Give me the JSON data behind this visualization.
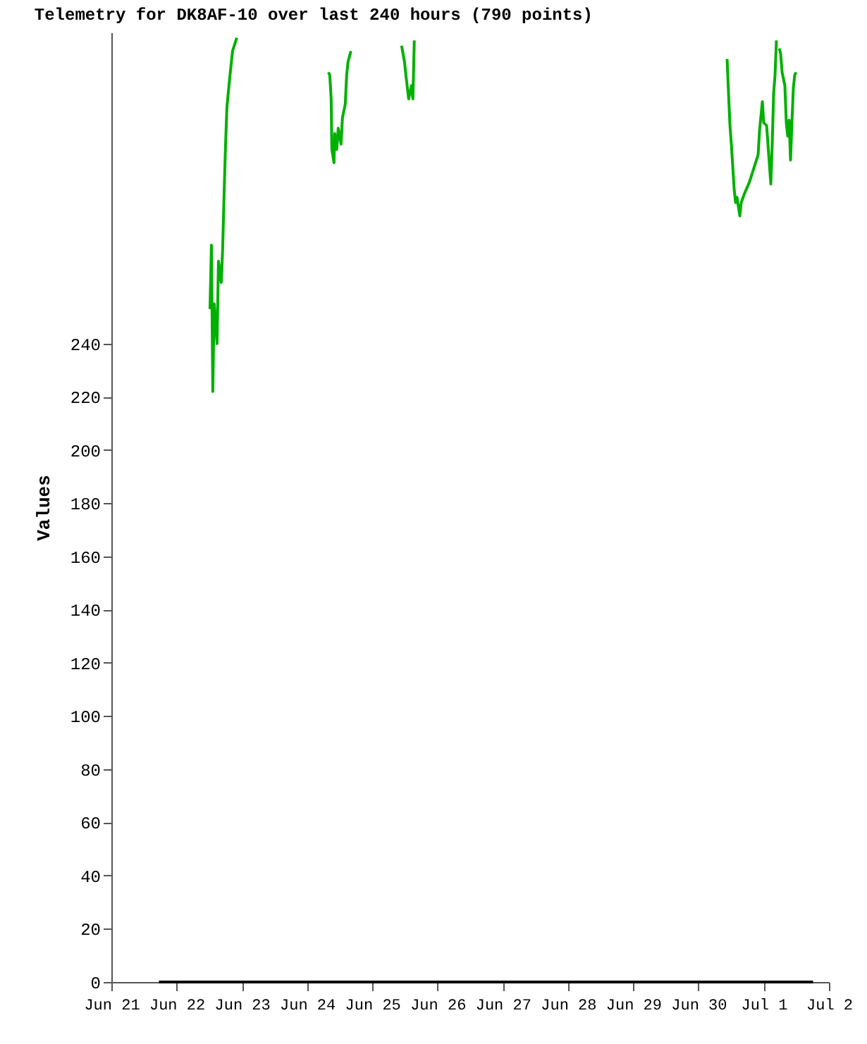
{
  "chart_data": {
    "type": "line",
    "title": "Telemetry for DK8AF-10 over last 240 hours (790 points)",
    "ylabel": "Values",
    "grid": false,
    "marker": "none",
    "line_style": "solid",
    "xlim": [
      "--06-21",
      "--07-02"
    ],
    "ylim": [
      0,
      357
    ],
    "xticks": [
      {
        "value": "--06-21",
        "label": "Jun 21"
      },
      {
        "value": "--06-22",
        "label": "Jun 22"
      },
      {
        "value": "--06-23",
        "label": "Jun 23"
      },
      {
        "value": "--06-24",
        "label": "Jun 24"
      },
      {
        "value": "--06-25",
        "label": "Jun 25"
      },
      {
        "value": "--06-26",
        "label": "Jun 26"
      },
      {
        "value": "--06-27",
        "label": "Jun 27"
      },
      {
        "value": "--06-28",
        "label": "Jun 28"
      },
      {
        "value": "--06-29",
        "label": "Jun 29"
      },
      {
        "value": "--06-30",
        "label": "Jun 30"
      },
      {
        "value": "--07-01",
        "label": "Jul 1"
      },
      {
        "value": "--07-02",
        "label": "Jul 2"
      }
    ],
    "yticks": [
      0,
      20,
      40,
      60,
      80,
      100,
      120,
      140,
      160,
      180,
      200,
      220,
      240
    ],
    "series": [
      {
        "color": "#000000",
        "x": [
          "--06-21T17:30",
          "--06-26T12:00",
          "--07-01T18:10"
        ],
        "values": [
          0,
          0,
          0
        ]
      },
      {
        "color": "#00b000",
        "x": [
          "--06-22T12:17",
          "--06-22T12:49",
          "--06-22T13:19",
          "--06-22T13:50",
          "--06-22T14:53",
          "--06-22T15:24",
          "--06-22T16:26",
          "--06-22T16:57",
          "--06-22T17:28",
          "--06-22T17:59",
          "--06-22T18:31",
          "--06-22T19:33",
          "--06-22T20:35",
          "--06-22T22:08",
          "--06-22T23:41",
          "--06-23T12:00",
          "--06-24T07:19",
          "--06-24T07:50",
          "--06-24T08:21",
          "--06-24T08:52",
          "--06-24T09:07",
          "--06-24T09:55",
          "--06-24T10:10",
          "--06-24T10:56",
          "--06-24T11:28",
          "--06-24T12:30",
          "--06-24T13:01",
          "--06-24T14:03",
          "--06-24T14:34",
          "--06-24T15:05",
          "--06-24T16:08",
          "--06-24T16:38",
          "--06-25T00:00",
          "--06-25T10:16",
          "--06-25T10:47",
          "--06-25T11:50",
          "--06-25T12:21",
          "--06-25T13:23",
          "--06-25T14:25",
          "--06-25T14:56",
          "--06-25T15:27",
          "--06-25T15:58",
          "--06-28T00:00",
          "--06-30T10:01",
          "--06-30T10:32",
          "--06-30T11:04",
          "--06-30T11:35",
          "--06-30T12:06",
          "--06-30T13:08",
          "--06-30T13:39",
          "--06-30T14:10",
          "--06-30T15:13",
          "--06-30T15:44",
          "--06-30T16:46",
          "--06-30T18:50",
          "--06-30T20:23",
          "--06-30T21:57",
          "--06-30T22:28",
          "--06-30T23:30",
          "--07-01T00:01",
          "--07-01T01:04",
          "--07-01T01:34",
          "--07-01T02:37",
          "--07-01T03:08",
          "--07-01T03:39",
          "--07-01T04:10",
          "--07-01T04:41",
          "--07-01T05:12",
          "--07-01T05:43",
          "--07-01T06:14",
          "--07-01T06:46",
          "--07-01T07:47",
          "--07-01T08:19",
          "--07-01T08:50",
          "--07-01T09:21",
          "--07-01T09:52",
          "--07-01T10:23",
          "--07-01T10:54",
          "--07-01T11:25",
          "--07-01T11:56"
        ],
        "values": [
          253,
          277,
          222,
          255,
          240,
          271,
          263,
          276,
          296,
          314,
          329,
          340,
          350,
          355,
          null,
          null,
          null,
          342,
          341,
          332,
          313,
          308,
          319,
          313,
          321,
          315,
          325,
          330,
          341,
          346,
          350,
          null,
          null,
          null,
          352,
          346,
          341,
          332,
          337,
          332,
          354,
          null,
          null,
          null,
          347,
          334,
          322,
          315,
          298,
          293,
          295,
          288,
          293,
          296,
          301,
          306,
          311,
          320,
          331,
          323,
          322,
          315,
          300,
          315,
          334,
          341,
          354,
          null,
          351,
          349,
          342,
          337,
          323,
          318,
          324,
          309,
          323,
          336,
          341,
          342
        ]
      }
    ]
  }
}
